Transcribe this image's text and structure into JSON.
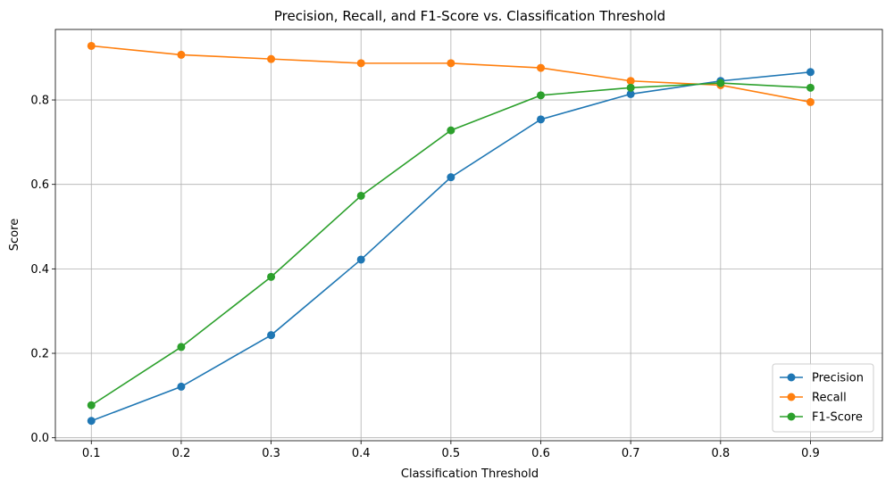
{
  "chart_data": {
    "type": "line",
    "title": "Precision, Recall, and F1-Score vs. Classification Threshold",
    "xlabel": "Classification Threshold",
    "ylabel": "Score",
    "x": [
      0.1,
      0.2,
      0.3,
      0.4,
      0.5,
      0.6,
      0.7,
      0.8,
      0.9
    ],
    "x_tick_labels": [
      "0.1",
      "0.2",
      "0.3",
      "0.4",
      "0.5",
      "0.6",
      "0.7",
      "0.8",
      "0.9"
    ],
    "y_ticks": [
      0.0,
      0.2,
      0.4,
      0.6,
      0.8
    ],
    "y_tick_labels": [
      "0.0",
      "0.2",
      "0.4",
      "0.6",
      "0.8"
    ],
    "xlim": [
      0.06,
      0.98
    ],
    "ylim": [
      -0.007,
      0.967
    ],
    "grid": true,
    "legend_position": "lower right",
    "series": [
      {
        "name": "Precision",
        "color": "#1f77b4",
        "marker": "circle",
        "values": [
          0.04,
          0.121,
          0.243,
          0.422,
          0.617,
          0.754,
          0.814,
          0.845,
          0.866
        ]
      },
      {
        "name": "Recall",
        "color": "#ff7f0e",
        "marker": "circle",
        "values": [
          0.928,
          0.907,
          0.897,
          0.887,
          0.887,
          0.876,
          0.845,
          0.835,
          0.795
        ]
      },
      {
        "name": "F1-Score",
        "color": "#2ca02c",
        "marker": "circle",
        "values": [
          0.077,
          0.215,
          0.381,
          0.573,
          0.728,
          0.811,
          0.829,
          0.84,
          0.829
        ]
      }
    ]
  }
}
